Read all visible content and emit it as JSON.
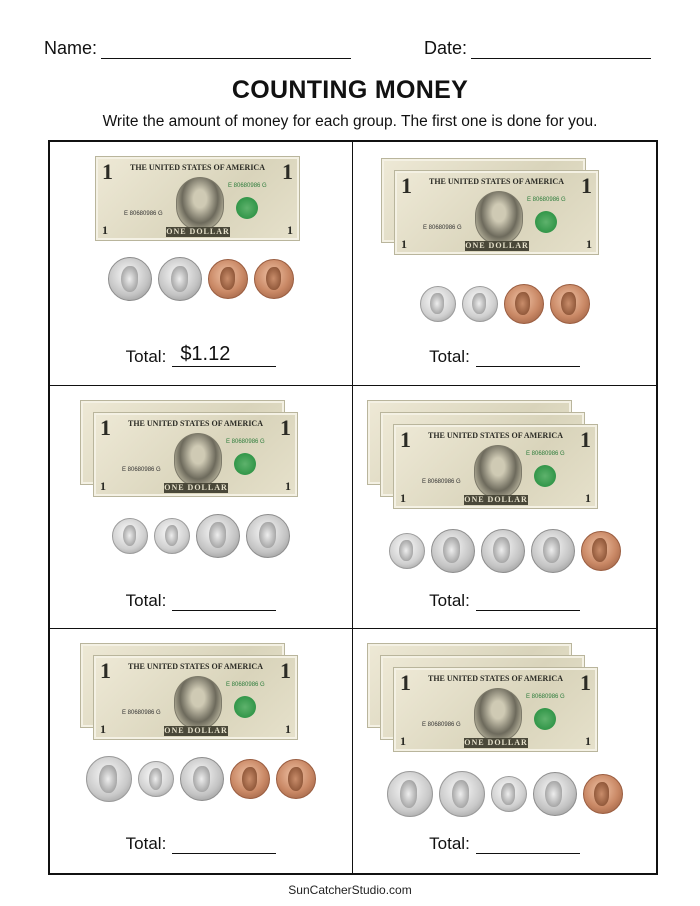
{
  "header": {
    "name_label": "Name:",
    "date_label": "Date:"
  },
  "title": "COUNTING MONEY",
  "instructions": "Write the amount of money for each group. The first one is done for you.",
  "bill_text": {
    "top": "THE UNITED STATES OF AMERICA",
    "denomination": "1",
    "serial": "E 80680986 G",
    "bottom": "ONE DOLLAR"
  },
  "total_label": "Total:",
  "groups": [
    {
      "bills": 1,
      "coins": [
        "nickel",
        "nickel",
        "penny",
        "penny"
      ],
      "answer": "$1.12"
    },
    {
      "bills": 2,
      "coins": [
        "dime",
        "dime",
        "penny",
        "penny"
      ],
      "answer": ""
    },
    {
      "bills": 2,
      "coins": [
        "dime",
        "dime",
        "nickel",
        "nickel"
      ],
      "answer": ""
    },
    {
      "bills": 3,
      "coins": [
        "dime",
        "nickel",
        "nickel",
        "nickel",
        "penny"
      ],
      "answer": ""
    },
    {
      "bills": 2,
      "coins": [
        "quarter",
        "dime",
        "nickel",
        "penny",
        "penny"
      ],
      "answer": ""
    },
    {
      "bills": 3,
      "coins": [
        "quarter",
        "quarter",
        "dime",
        "nickel",
        "penny"
      ],
      "answer": ""
    }
  ],
  "footer": "SunCatcherStudio.com"
}
